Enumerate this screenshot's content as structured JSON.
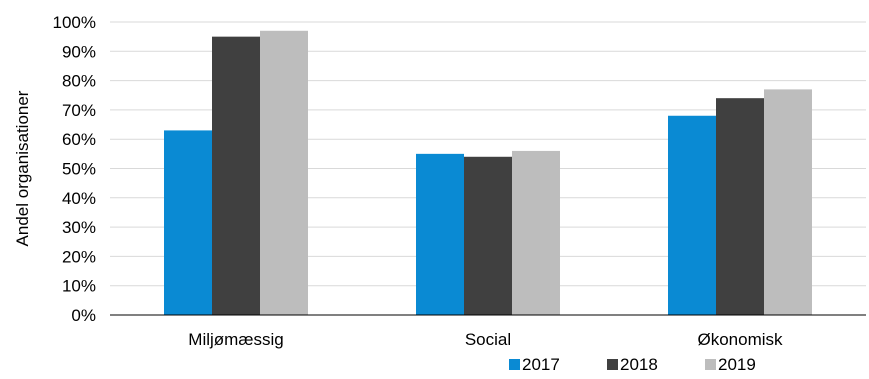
{
  "chart_data": {
    "type": "bar",
    "title": "",
    "xlabel": "",
    "ylabel": "Andel organisationer",
    "categories": [
      "Miljømæssig",
      "Social",
      "Økonomisk"
    ],
    "series": [
      {
        "name": "2017",
        "color": "#0A8AD3",
        "values": [
          63,
          55,
          68
        ]
      },
      {
        "name": "2018",
        "color": "#404040",
        "values": [
          95,
          54,
          74
        ]
      },
      {
        "name": "2019",
        "color": "#BDBDBD",
        "values": [
          97,
          56,
          77
        ]
      }
    ],
    "ylim": [
      0,
      100
    ],
    "yticks": [
      "0%",
      "10%",
      "20%",
      "30%",
      "40%",
      "50%",
      "60%",
      "70%",
      "80%",
      "90%",
      "100%"
    ],
    "grid": true,
    "legend_position": "bottom-right"
  }
}
